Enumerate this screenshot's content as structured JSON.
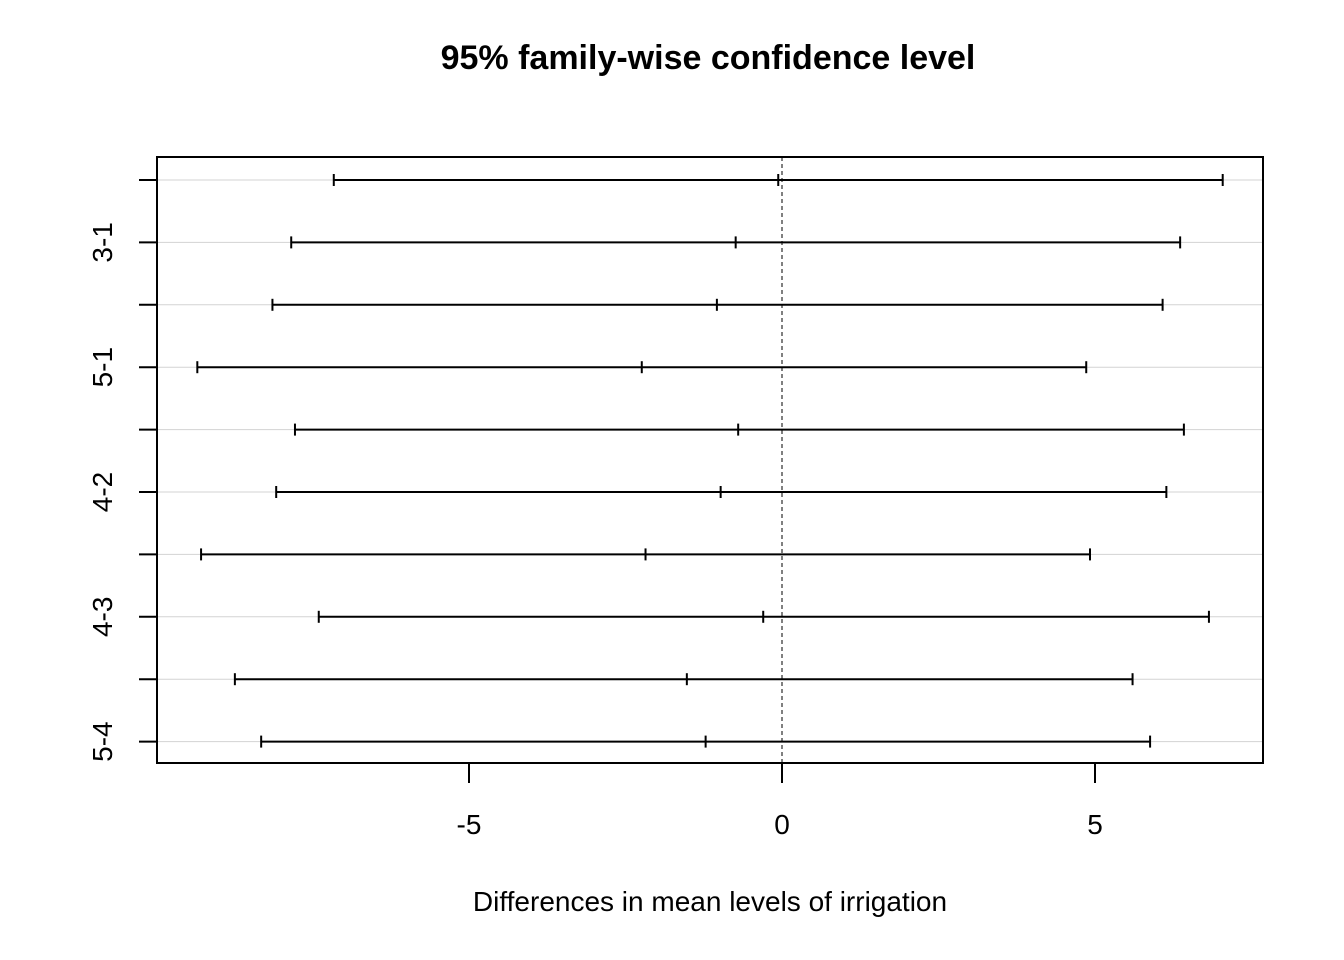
{
  "chart_data": {
    "type": "errorbar",
    "title": "95% family-wise confidence level",
    "xlabel": "Differences in mean levels of irrigation",
    "ylabel": "",
    "xlim": [
      -10.0,
      7.7
    ],
    "xticks": [
      -5,
      0,
      5
    ],
    "x_tick_labels": [
      "-5",
      "0",
      "5"
    ],
    "reference_line_x": 0,
    "grid": "horizontal",
    "y_tick_labels_shown": [
      "3-1",
      "5-1",
      "4-2",
      "4-3",
      "5-4"
    ],
    "comparisons": [
      {
        "label": "",
        "lwr": -7.16,
        "diff": -0.06,
        "upr": 7.04
      },
      {
        "label": "3-1",
        "lwr": -7.84,
        "diff": -0.74,
        "upr": 6.36
      },
      {
        "label": "",
        "lwr": -8.14,
        "diff": -1.04,
        "upr": 6.08
      },
      {
        "label": "5-1",
        "lwr": -9.34,
        "diff": -2.24,
        "upr": 4.86
      },
      {
        "label": "",
        "lwr": -7.78,
        "diff": -0.7,
        "upr": 6.42
      },
      {
        "label": "4-2",
        "lwr": -8.08,
        "diff": -0.98,
        "upr": 6.14
      },
      {
        "label": "",
        "lwr": -9.28,
        "diff": -2.18,
        "upr": 4.92
      },
      {
        "label": "4-3",
        "lwr": -7.4,
        "diff": -0.3,
        "upr": 6.82
      },
      {
        "label": "",
        "lwr": -8.74,
        "diff": -1.52,
        "upr": 5.6
      },
      {
        "label": "5-4",
        "lwr": -8.32,
        "diff": -1.22,
        "upr": 5.88
      }
    ]
  }
}
